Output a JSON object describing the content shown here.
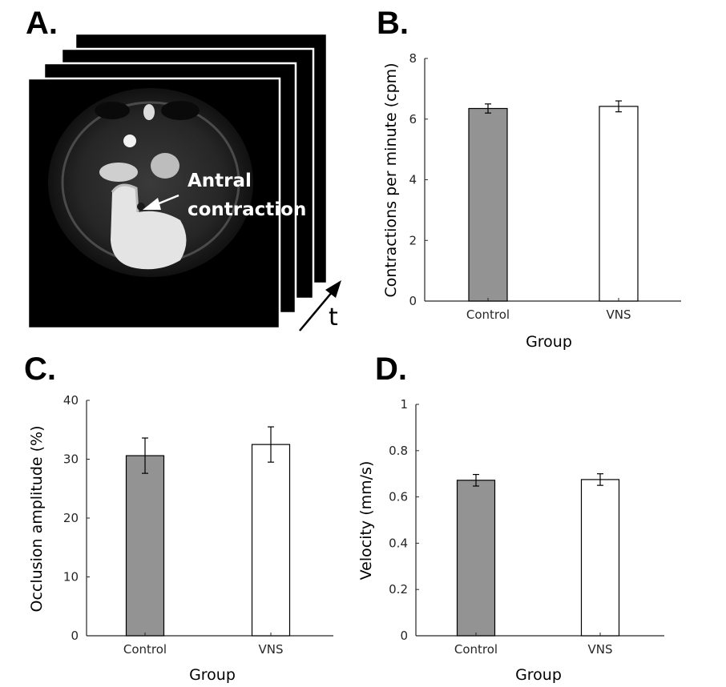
{
  "panel_labels": [
    "A.",
    "B.",
    "C.",
    "D."
  ],
  "image_panel": {
    "annotation_line1": "Antral",
    "annotation_line2": "contraction",
    "time_label": "t"
  },
  "colors": {
    "control_bar": "#939393",
    "vns_bar": "#ffffff",
    "axis": "#262626",
    "frame_bg": "#000000"
  },
  "chart_data": [
    {
      "panel": "B",
      "type": "bar",
      "categories": [
        "Control",
        "VNS"
      ],
      "values": [
        6.35,
        6.42
      ],
      "errors": [
        0.15,
        0.18
      ],
      "xlabel": "Group",
      "ylabel": "Contractions  per minute (cpm)",
      "ylim": [
        0,
        8
      ],
      "yticks": [
        "0",
        "2",
        "4",
        "6",
        "8"
      ]
    },
    {
      "panel": "C",
      "type": "bar",
      "categories": [
        "Control",
        "VNS"
      ],
      "values": [
        30.6,
        32.5
      ],
      "errors": [
        3.0,
        3.0
      ],
      "xlabel": "Group",
      "ylabel": "Occlusion amplitude (%)",
      "ylim": [
        0,
        40
      ],
      "yticks": [
        "0",
        "10",
        "20",
        "30",
        "40"
      ]
    },
    {
      "panel": "D",
      "type": "bar",
      "categories": [
        "Control",
        "VNS"
      ],
      "values": [
        0.672,
        0.675
      ],
      "errors": [
        0.025,
        0.025
      ],
      "xlabel": "Group",
      "ylabel": "Velocity (mm/s)",
      "ylim": [
        0,
        1
      ],
      "yticks": [
        "0",
        "0.2",
        "0.4",
        "0.6",
        "0.8",
        "1"
      ]
    }
  ]
}
